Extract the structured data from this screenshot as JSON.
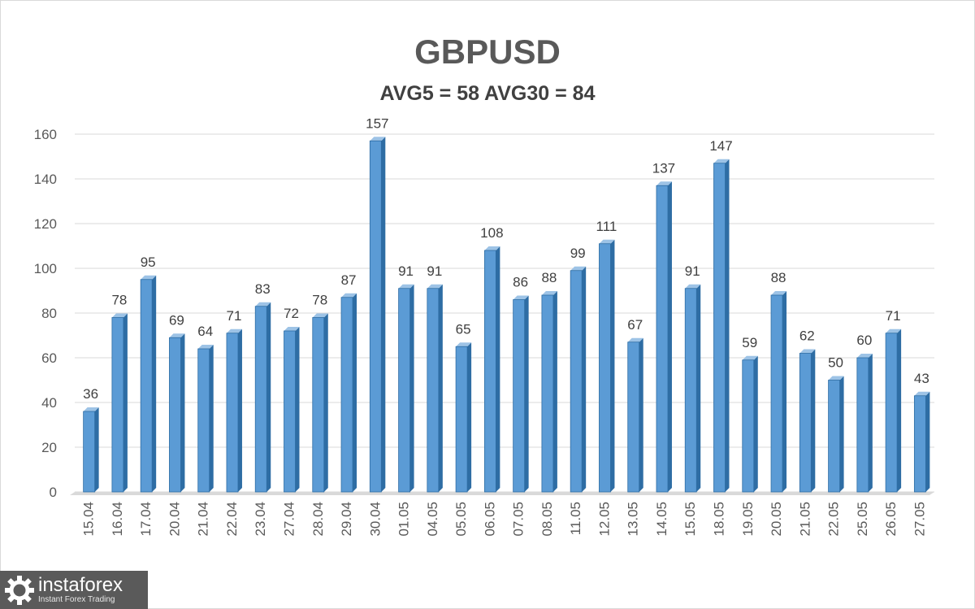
{
  "chart_data": {
    "type": "bar",
    "title": "GBPUSD",
    "subtitle": "AVG5 = 58 AVG30 = 84",
    "categories": [
      "15.04",
      "16.04",
      "17.04",
      "20.04",
      "21.04",
      "22.04",
      "23.04",
      "27.04",
      "28.04",
      "29.04",
      "30.04",
      "01.05",
      "04.05",
      "05.05",
      "06.05",
      "07.05",
      "08.05",
      "11.05",
      "12.05",
      "13.05",
      "14.05",
      "15.05",
      "18.05",
      "19.05",
      "20.05",
      "21.05",
      "22.05",
      "25.05",
      "26.05",
      "27.05"
    ],
    "values": [
      36,
      78,
      95,
      69,
      64,
      71,
      83,
      72,
      78,
      87,
      157,
      91,
      91,
      65,
      108,
      86,
      88,
      99,
      111,
      67,
      137,
      91,
      147,
      59,
      88,
      62,
      50,
      60,
      71,
      43
    ],
    "ylim": [
      0,
      160
    ],
    "yticks": [
      0,
      20,
      40,
      60,
      80,
      100,
      120,
      140,
      160
    ],
    "grid": true,
    "legend": "none",
    "bar_color": "#5b9bd5",
    "bar_edge_color": "#2e6da4"
  },
  "watermark": {
    "name": "instaforex",
    "tagline": "Instant Forex Trading",
    "icon": "gear-logo-icon"
  }
}
